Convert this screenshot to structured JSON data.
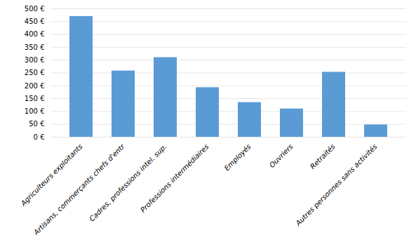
{
  "chart_data": {
    "type": "bar",
    "categories": [
      "Agriculteurs exploitants",
      "Artisans, commerçants chefs d'entr",
      "Cadres, professions intel. sup.",
      "Professions intermédiaires",
      "Employés",
      "Ouvriers",
      "Retraités",
      "Autres personnes sans activités"
    ],
    "values": [
      470,
      258,
      310,
      193,
      135,
      110,
      253,
      48
    ],
    "color": "#5B9BD5",
    "ylim": [
      0,
      500
    ],
    "yticks": [
      {
        "value": 0,
        "label": "0 €"
      },
      {
        "value": 50,
        "label": "50 €"
      },
      {
        "value": 100,
        "label": "100 €"
      },
      {
        "value": 150,
        "label": "150 €"
      },
      {
        "value": 200,
        "label": "200 €"
      },
      {
        "value": 250,
        "label": "250 €"
      },
      {
        "value": 300,
        "label": "300 €"
      },
      {
        "value": 350,
        "label": "350 €"
      },
      {
        "value": 400,
        "label": "400 €"
      },
      {
        "value": 450,
        "label": "450 €"
      },
      {
        "value": 500,
        "label": "500 €"
      }
    ],
    "grid": true
  }
}
